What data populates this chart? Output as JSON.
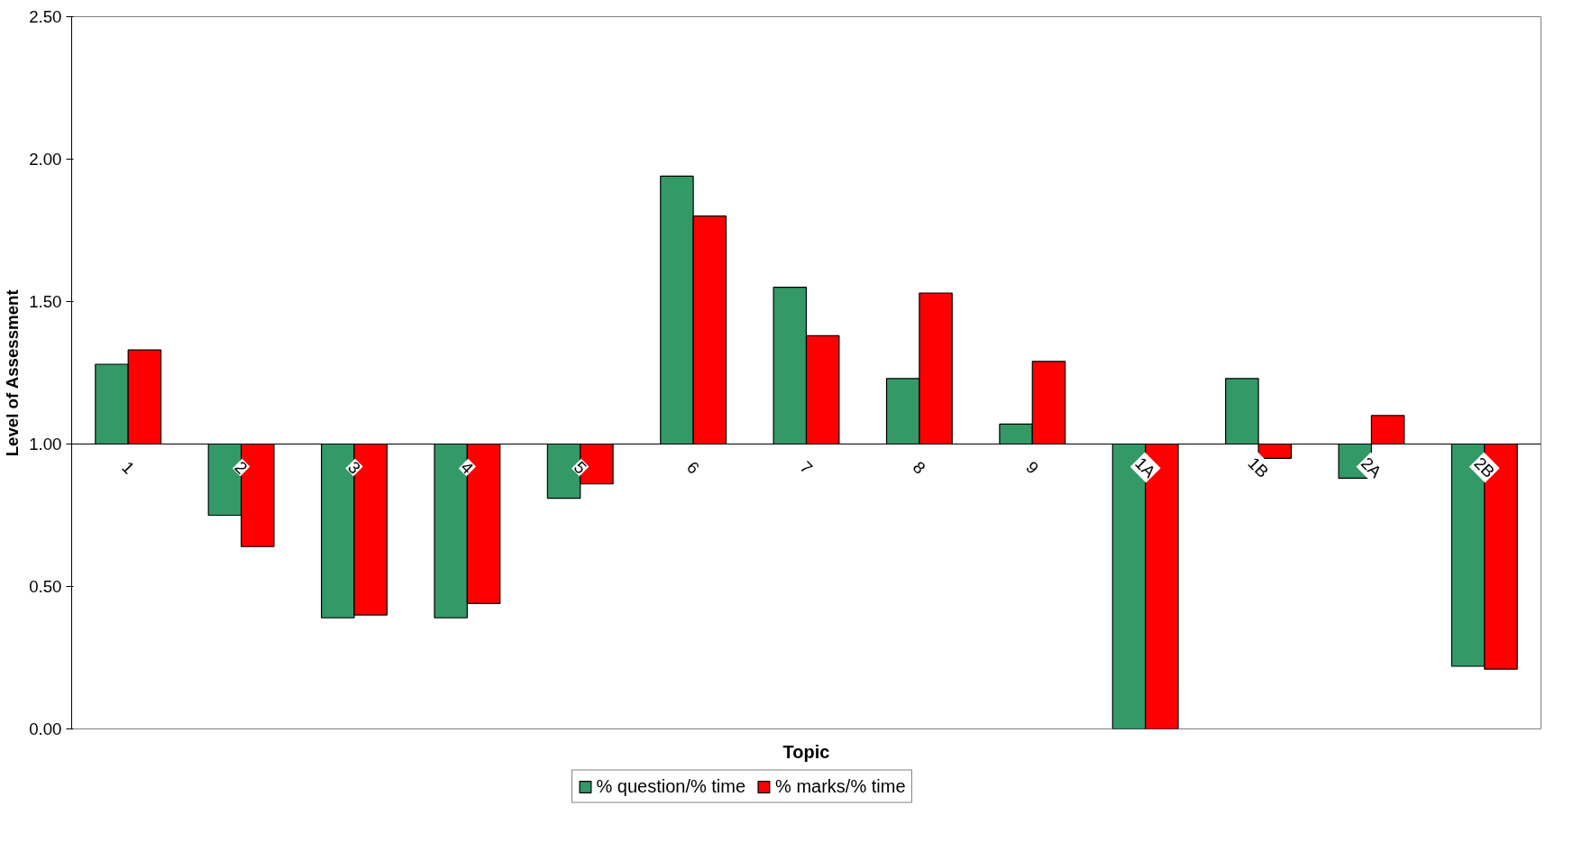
{
  "chart_data": {
    "type": "bar",
    "xlabel": "Topic",
    "ylabel": "Level of Assessment",
    "categories": [
      "1",
      "2",
      "3",
      "4",
      "5",
      "6",
      "7",
      "8",
      "9",
      "1A",
      "1B",
      "2A",
      "2B"
    ],
    "series": [
      {
        "name": "% question/% time",
        "color": "#339966",
        "base": [
          1,
          1,
          1,
          1,
          1,
          1,
          1,
          1,
          1,
          1,
          1,
          1,
          1
        ],
        "values": [
          0.28,
          -0.25,
          -0.61,
          -0.61,
          -0.19,
          0.94,
          0.55,
          0.23,
          0.07,
          -1,
          0.23,
          -0.12,
          -0.78
        ]
      },
      {
        "name": "% marks/% time",
        "color": "#ff0000",
        "base": [
          1,
          1,
          1,
          1,
          1,
          1,
          1,
          1,
          1,
          1,
          1,
          1,
          1
        ],
        "values": [
          0.33,
          -0.36,
          -0.6,
          -0.56,
          -0.14,
          0.8,
          0.38,
          0.53,
          0.29,
          -1,
          -0.05,
          0.1,
          -0.79
        ]
      }
    ],
    "ylim": [
      0,
      2.5
    ],
    "yticks": [
      {
        "value": 0,
        "label": "0.00"
      },
      {
        "value": 0.5,
        "label": "0.50"
      },
      {
        "value": 1,
        "label": "1.00"
      },
      {
        "value": 1.5,
        "label": "1.50"
      },
      {
        "value": 2,
        "label": "2.00"
      },
      {
        "value": 2.5,
        "label": "2.50"
      }
    ],
    "grid": false,
    "legend": "bottom"
  }
}
